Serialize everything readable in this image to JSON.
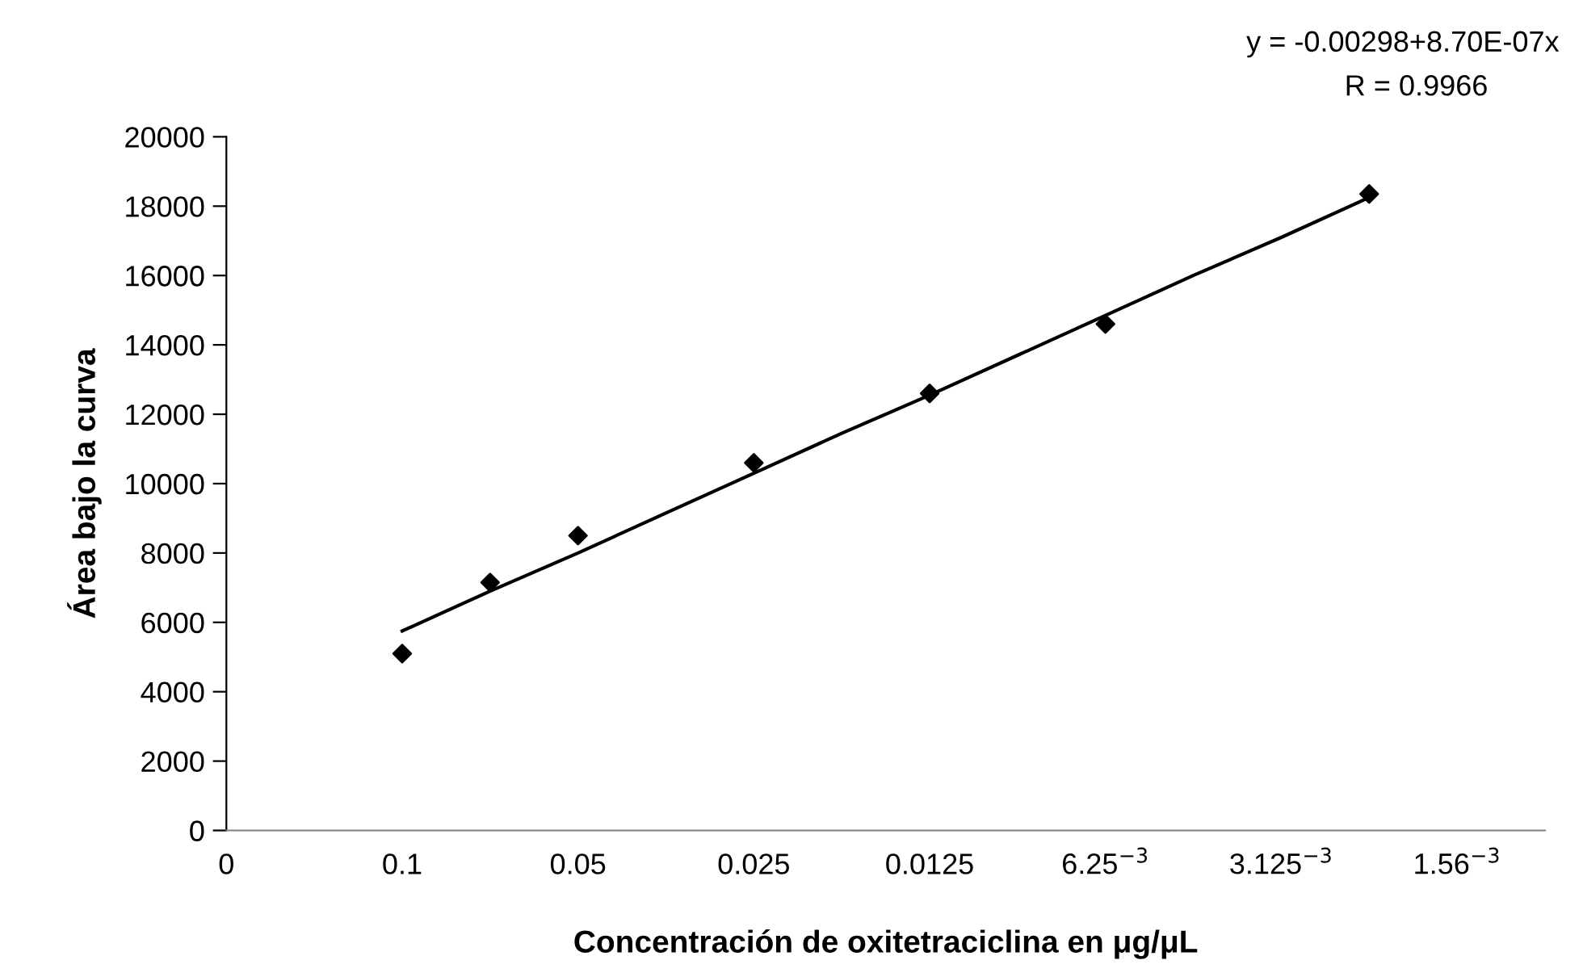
{
  "chart_data": {
    "type": "scatter",
    "xlabel": "Concentración de oxitetraciclina en μg/μL",
    "ylabel": "Área bajo la curva",
    "annotations": [
      "y = -0.00298+8.70E-07x",
      "R = 0.9966"
    ],
    "categories": [
      "0",
      null,
      "0.1",
      null,
      "0.05",
      null,
      "0.025",
      null,
      "0.0125",
      null,
      "6.25$^{−3}$",
      null,
      "3.125$^{−3}$",
      null,
      "1.56$^{−3}$"
    ],
    "series": [
      {
        "color": "#000000",
        "marker": "diamond",
        "values": [
          null,
          null,
          5100,
          7150,
          8500,
          null,
          10600,
          null,
          12600,
          null,
          14600,
          null,
          null,
          18350,
          null
        ]
      },
      {
        "type": "line",
        "color": "#000000",
        "marker": "none",
        "values": [
          null,
          null,
          5750,
          6900,
          8000,
          9150,
          10300,
          11450,
          12550,
          13700,
          14850,
          16000,
          17100,
          18250,
          null
        ]
      }
    ],
    "ylim": [
      0,
      20000
    ],
    "yticks": [
      0,
      2000,
      4000,
      6000,
      8000,
      10000,
      12000,
      14000,
      16000,
      18000,
      20000
    ],
    "grid": false,
    "legend": false
  }
}
